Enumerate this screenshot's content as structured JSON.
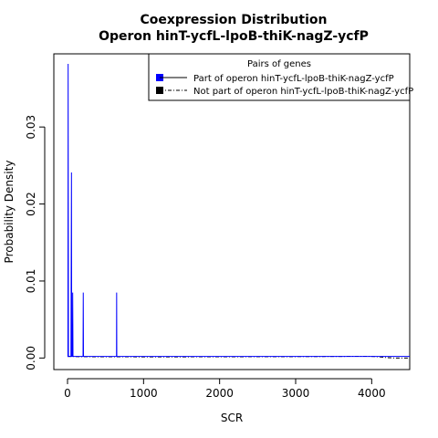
{
  "chart_data": {
    "type": "line",
    "title": "Coexpression Distribution",
    "subtitle": "Operon hinT-ycfL-lpoB-thiK-nagZ-ycfP",
    "xlabel": "SCR",
    "ylabel": "Probability Density",
    "xlim": [
      -180,
      4500
    ],
    "ylim": [
      -0.0015,
      0.0395
    ],
    "xticks": [
      0,
      1000,
      2000,
      3000,
      4000
    ],
    "xtick_labels": [
      "0",
      "1000",
      "2000",
      "3000",
      "4000"
    ],
    "yticks": [
      0,
      0.01,
      0.02,
      0.03
    ],
    "ytick_labels": [
      "0.00",
      "0.01",
      "0.02",
      "0.03"
    ],
    "grid": false,
    "legend": {
      "title": "Pairs of genes",
      "placement": "top-right"
    },
    "series": [
      {
        "name": "Part of operon hinT-ycfL-lpoB-thiK-nagZ-ycfP",
        "color": "#0000ff",
        "style": "solid",
        "x": [
          0,
          5,
          8,
          12,
          16,
          20,
          25,
          30,
          35,
          38,
          45,
          52,
          55,
          60,
          65,
          68,
          72,
          78,
          200,
          204,
          207,
          210,
          214,
          218,
          640,
          644,
          646,
          648,
          652,
          656,
          4500
        ],
        "y": [
          0.0002,
          0.0002,
          0.0382,
          0.0002,
          0.0002,
          0.0002,
          0.0002,
          0.0002,
          0.0002,
          0.0002,
          0.0002,
          0.0241,
          0.0002,
          0.0002,
          0.0002,
          0.0085,
          0.0002,
          0.0002,
          0.0002,
          0.0002,
          0.0085,
          0.0002,
          0.0002,
          0.0002,
          0.0002,
          0.0002,
          0.0085,
          0.0002,
          0.0002,
          0.0002,
          0.0002
        ]
      },
      {
        "name": "Not part of operon hinT-ycfL-lpoB-thiK-nagZ-ycfP",
        "color": "#000000",
        "style": "dot-dash",
        "x": [
          0,
          20,
          40,
          60,
          80,
          100,
          200,
          500,
          1000,
          1500,
          2000,
          2500,
          3000,
          3500,
          3800,
          4000,
          4100,
          4200,
          4300,
          4400,
          4500
        ],
        "y": [
          0.0002,
          0.0002,
          0.0002,
          0.0002,
          0.0002,
          0.00019,
          0.00017,
          0.00016,
          0.00015,
          0.00015,
          0.00016,
          0.00017,
          0.00018,
          0.0002,
          0.00022,
          0.00021,
          0.00015,
          5e-05,
          0.0,
          0.0,
          0.0
        ]
      }
    ]
  }
}
